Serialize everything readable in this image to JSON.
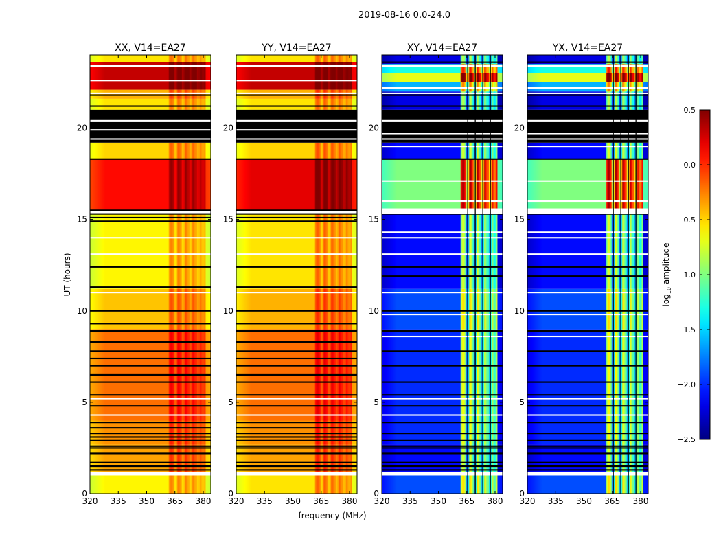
{
  "chart_data": {
    "type": "heatmap",
    "title": "2019-08-16 0.0-24.0",
    "xlabel": "frequency (MHz)",
    "ylabel": "UT (hours)",
    "xlim": [
      320,
      384
    ],
    "ylim": [
      0,
      24
    ],
    "xticks": [
      320,
      335,
      350,
      365,
      380
    ],
    "yticks": [
      0,
      5,
      10,
      15,
      20
    ],
    "rfi_band": [
      362,
      381
    ],
    "rfi_gaps": [
      365.5,
      369.5,
      373.5,
      377.5
    ],
    "panels": [
      {
        "title": "XX, V14=EA27",
        "rfi_boost": 0.35,
        "segments": [
          [
            0,
            1.0,
            -0.6
          ],
          [
            1.2,
            2.7,
            -0.35
          ],
          [
            2.7,
            4.0,
            -0.3
          ],
          [
            4.0,
            9.0,
            -0.2
          ],
          [
            9.0,
            11.2,
            -0.45
          ],
          [
            11.2,
            15.3,
            -0.6
          ],
          [
            15.5,
            18.3,
            0.1
          ],
          [
            18.3,
            19.2,
            -0.5
          ],
          [
            21.0,
            21.6,
            -0.55
          ],
          [
            21.6,
            22.1,
            -0.4
          ],
          [
            22.1,
            23.6,
            0.3
          ],
          [
            23.6,
            24,
            -0.55
          ]
        ],
        "flags_black": [
          [
            19.2,
            21.0
          ],
          1.3,
          1.5,
          1.7,
          2.2,
          2.5,
          2.6,
          2.9,
          3.1,
          3.3,
          3.6,
          3.9,
          4.8,
          5.4,
          6.1,
          6.5,
          7.0,
          7.4,
          7.8,
          8.3,
          8.9,
          9.3,
          10.0,
          11.3,
          12.4,
          14.9,
          15.1,
          15.3,
          15.5,
          18.3,
          21.2,
          21.8
        ],
        "flags_white": [
          [
            1.0,
            1.2
          ],
          19.4,
          19.9,
          20.4,
          21.9,
          22.6,
          4.3,
          5.2,
          13.1,
          14.0,
          11.0,
          23.4
        ]
      },
      {
        "title": "YY, V14=EA27",
        "rfi_boost": 0.4,
        "segments": [
          [
            0,
            1.0,
            -0.55
          ],
          [
            1.2,
            2.7,
            -0.35
          ],
          [
            2.7,
            4.0,
            -0.3
          ],
          [
            4.0,
            9.0,
            -0.2
          ],
          [
            9.0,
            11.2,
            -0.4
          ],
          [
            11.2,
            15.3,
            -0.55
          ],
          [
            15.5,
            18.3,
            0.2
          ],
          [
            18.3,
            19.2,
            -0.5
          ],
          [
            21.0,
            21.6,
            -0.55
          ],
          [
            21.6,
            22.1,
            -0.4
          ],
          [
            22.1,
            23.6,
            0.3
          ],
          [
            23.6,
            24,
            -0.55
          ]
        ],
        "flags_black": [
          [
            19.2,
            21.0
          ],
          1.3,
          1.5,
          1.7,
          2.2,
          2.5,
          2.6,
          2.9,
          3.1,
          3.3,
          3.6,
          3.9,
          4.8,
          5.4,
          6.1,
          6.5,
          7.0,
          7.4,
          7.8,
          8.3,
          8.9,
          9.3,
          10.0,
          11.3,
          12.4,
          14.9,
          15.1,
          15.3,
          15.5,
          18.3,
          21.2,
          21.8
        ],
        "flags_white": [
          [
            1.0,
            1.2
          ],
          19.4,
          19.9,
          20.4,
          21.9,
          22.6,
          4.3,
          5.2,
          13.1,
          14.0,
          11.0,
          23.4
        ]
      },
      {
        "title": "XY, V14=EA27",
        "rfi_boost": 1.4,
        "segments": [
          [
            0,
            1.0,
            -1.9
          ],
          [
            1.2,
            2.7,
            -2.1
          ],
          [
            2.7,
            9.0,
            -2.0
          ],
          [
            9.0,
            11.2,
            -1.9
          ],
          [
            11.2,
            15.3,
            -2.1
          ],
          [
            15.6,
            18.3,
            -1.0
          ],
          [
            18.3,
            19.2,
            -2.1
          ],
          [
            21.0,
            22.0,
            -2.2
          ],
          [
            22.0,
            22.5,
            -1.6
          ],
          [
            22.5,
            23.0,
            -0.7
          ],
          [
            23.0,
            23.5,
            -1.3
          ],
          [
            23.5,
            24,
            -2.2
          ]
        ],
        "flags_black": [
          [
            19.2,
            21.0
          ],
          1.3,
          1.5,
          1.7,
          2.2,
          2.5,
          2.6,
          2.9,
          3.3,
          3.9,
          4.8,
          5.4,
          6.1,
          7.0,
          7.8,
          8.9,
          10.0,
          11.9,
          12.4,
          15.3,
          15.5,
          18.3,
          21.2,
          21.8,
          23.6
        ],
        "flags_white": [
          [
            1.0,
            1.2
          ],
          [
            15.3,
            15.6
          ],
          19.0,
          19.4,
          19.7,
          20.4,
          21.9,
          22.2,
          4.3,
          5.2,
          8.6,
          9.8,
          11.0,
          13.1,
          14.0,
          14.3,
          17.1,
          16.0,
          23.4
        ]
      },
      {
        "title": "YX, V14=EA27",
        "rfi_boost": 1.4,
        "segments": [
          [
            0,
            1.0,
            -1.9
          ],
          [
            1.2,
            2.7,
            -2.1
          ],
          [
            2.7,
            9.0,
            -2.0
          ],
          [
            9.0,
            11.2,
            -1.9
          ],
          [
            11.2,
            15.3,
            -2.1
          ],
          [
            15.6,
            18.3,
            -1.0
          ],
          [
            18.3,
            19.2,
            -2.1
          ],
          [
            21.0,
            22.0,
            -2.2
          ],
          [
            22.0,
            22.5,
            -1.6
          ],
          [
            22.5,
            23.0,
            -0.7
          ],
          [
            23.0,
            23.5,
            -1.3
          ],
          [
            23.5,
            24,
            -2.2
          ]
        ],
        "flags_black": [
          [
            19.2,
            21.0
          ],
          1.3,
          1.5,
          1.7,
          2.2,
          2.5,
          2.6,
          2.9,
          3.3,
          3.9,
          4.8,
          5.4,
          6.1,
          7.0,
          7.8,
          8.9,
          10.0,
          11.9,
          12.4,
          15.3,
          15.5,
          18.3,
          21.2,
          21.8,
          23.6
        ],
        "flags_white": [
          [
            1.0,
            1.2
          ],
          [
            15.3,
            15.6
          ],
          19.0,
          19.4,
          19.7,
          20.4,
          21.9,
          22.2,
          4.3,
          5.2,
          8.6,
          9.8,
          11.0,
          13.1,
          14.0,
          14.3,
          17.1,
          16.0,
          23.4
        ]
      }
    ],
    "colorbar": {
      "label": "log10 amplitude",
      "label_main": "log",
      "label_sub": "10",
      "label_rest": " amplitude",
      "range": [
        -2.5,
        0.5
      ],
      "ticks": [
        "0.5",
        "0.0",
        "−0.5",
        "−1.0",
        "−1.5",
        "−2.0",
        "−2.5"
      ],
      "colormap": "jet"
    }
  }
}
